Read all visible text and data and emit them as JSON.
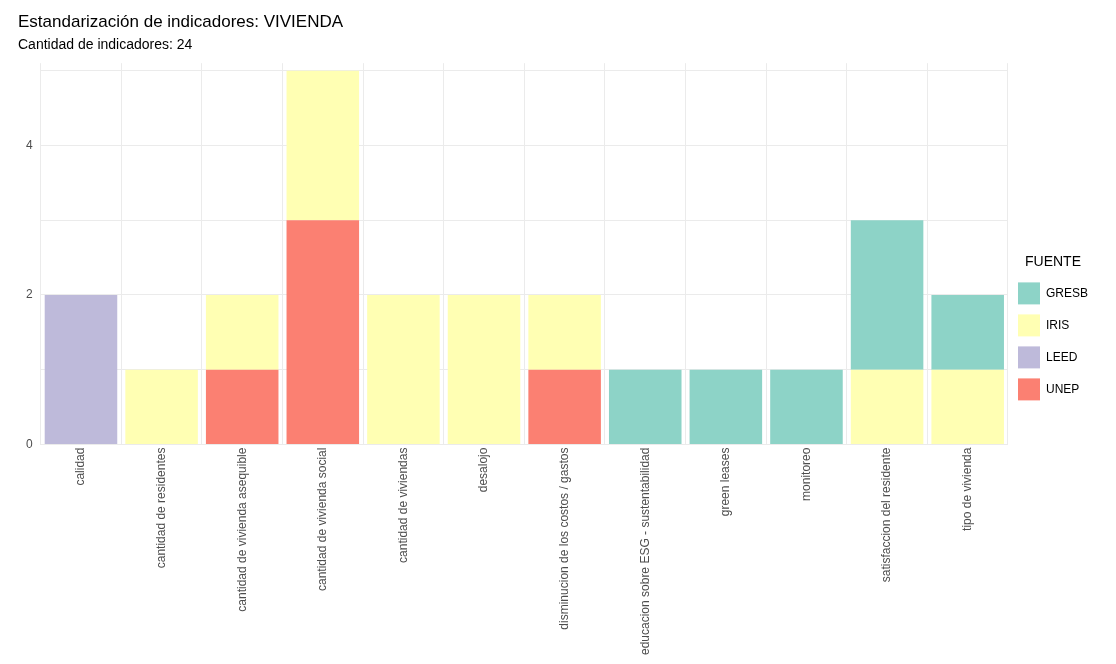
{
  "chart_data": {
    "type": "bar",
    "title": "Estandarización de indicadores: VIVIENDA",
    "subtitle": "Cantidad de indicadores: 24",
    "legend_title": "FUENTE",
    "stacked": true,
    "legend": "right",
    "grid": true,
    "categories": [
      "calidad",
      "cantidad de residentes",
      "cantidad de vivienda asequible",
      "cantidad de vivienda social",
      "cantidad de viviendas",
      "desalojo",
      "disminucion de los costos / gastos",
      "educacion sobre ESG - sustentabilidad",
      "green leases",
      "monitoreo",
      "satisfaccion del residente",
      "tipo de vivienda"
    ],
    "ylim": [
      0,
      5.1
    ],
    "yticks": [
      0,
      {
        "value": 1,
        "label": null
      },
      2,
      {
        "value": 3,
        "label": null
      },
      4,
      {
        "value": 5,
        "label": null
      }
    ],
    "series": [
      {
        "name": "UNEP",
        "color": "#fb8072",
        "values": [
          null,
          null,
          1,
          3,
          null,
          null,
          1,
          null,
          null,
          null,
          null,
          null
        ]
      },
      {
        "name": "LEED",
        "color": "#bebada",
        "values": [
          2,
          null,
          null,
          null,
          null,
          null,
          null,
          null,
          null,
          null,
          null,
          null
        ]
      },
      {
        "name": "IRIS",
        "color": "#ffffb3",
        "values": [
          null,
          1,
          1,
          2,
          2,
          2,
          1,
          null,
          null,
          null,
          1,
          1
        ]
      },
      {
        "name": "GRESB",
        "color": "#8dd3c7",
        "values": [
          null,
          null,
          null,
          null,
          null,
          null,
          null,
          1,
          1,
          1,
          2,
          1
        ]
      }
    ]
  }
}
